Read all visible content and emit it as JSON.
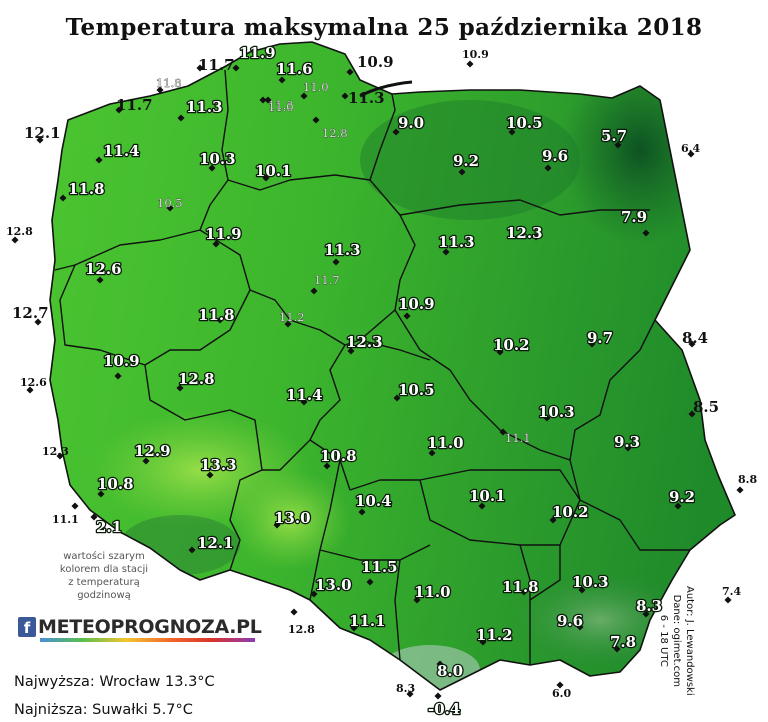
{
  "title": "Temperatura maksymalna 25 października 2018",
  "legend_note": [
    "wartości szarym",
    "kolorem dla stacji",
    "z temperaturą",
    "godzinową"
  ],
  "logo": {
    "icon": "facebook-icon",
    "text": "METEOPROGNOZA.PL"
  },
  "stats": {
    "max": "Najwyższa: Wrocław 13.3°C",
    "min": "Najniższa: Suwałki 5.7°C"
  },
  "credit": [
    "Autor: J. Lewandowski",
    "Dane: ogimet.com",
    "6 - 18 UTC"
  ],
  "colors": {
    "land_light": "#8fe045",
    "land_mid": "#3fba2e",
    "land_dark": "#1e8a2a",
    "land_darkest": "#0f5a22",
    "sea": "#ffffff",
    "border": "#1a1a1a"
  },
  "stations_in": [
    "11.9",
    "11.6",
    "11.0",
    "11.3",
    "12.8",
    "9.0",
    "10.5",
    "5.7",
    "11.3",
    "11.0",
    "11.4",
    "10.3",
    "10.1",
    "9.2",
    "9.6",
    "11.8",
    "10.5",
    "7.9",
    "11.9",
    "11.3",
    "11.3",
    "12.3",
    "12.6",
    "11.7",
    "11.8",
    "11.2",
    "10.9",
    "12.3",
    "10.2",
    "9.7",
    "10.9",
    "12.8",
    "11.4",
    "10.5",
    "10.3",
    "9.3",
    "12.9",
    "13.3",
    "10.8",
    "11.0",
    "11.1",
    "10.8",
    "10.4",
    "10.1",
    "10.2",
    "9.2",
    "13.0",
    "12.1",
    "11.5",
    "13.0",
    "11.0",
    "11.8",
    "10.3",
    "8.3",
    "11.1",
    "9.6",
    "11.2",
    "7.8",
    "8.0",
    "-0.4",
    "2.1"
  ],
  "stations_out": [
    "11.7",
    "11.8",
    "11.7",
    "12.1",
    "10.9",
    "10.9",
    "11.3",
    "6.4",
    "12.8",
    "12.7",
    "12.6",
    "8.4",
    "8.5",
    "12.3",
    "11.1",
    "8.8",
    "7.4",
    "12.8",
    "8.3",
    "6.0"
  ]
}
